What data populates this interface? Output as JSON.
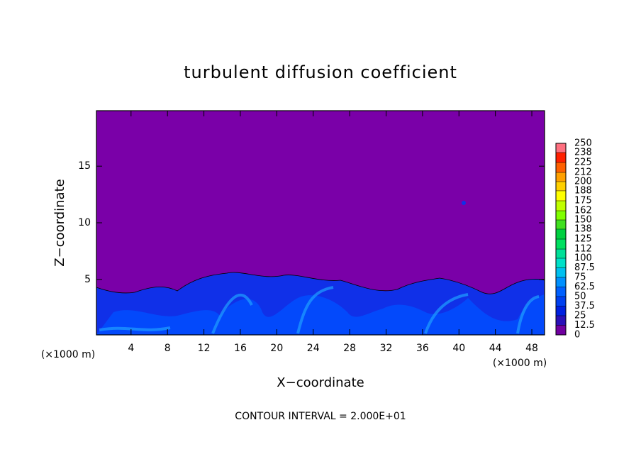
{
  "chart_data": {
    "type": "contour",
    "title": "turbulent diffusion coefficient",
    "xlabel": "X−coordinate",
    "ylabel": "Z−coordinate",
    "xunit": "(×1000 m)",
    "xunit2": "(×1000 m)",
    "footer": "CONTOUR INTERVAL = 2.000E+01",
    "xlim": [
      0.2,
      49.4
    ],
    "ylim": [
      0.1,
      19.9
    ],
    "xticks": [
      4,
      8,
      12,
      16,
      20,
      24,
      28,
      32,
      36,
      40,
      44,
      48
    ],
    "yticks": [
      5,
      10,
      15
    ],
    "background_color": "#7a00a8",
    "colorbar": {
      "ticks": [
        0,
        12.5,
        25,
        37.5,
        50,
        62.5,
        75,
        87.5,
        100,
        112,
        125,
        138,
        150,
        162,
        175,
        188,
        200,
        212,
        225,
        238,
        250
      ],
      "colors": [
        "#7000a0",
        "#2a10b8",
        "#0020e0",
        "#0040f0",
        "#0060ff",
        "#0090ff",
        "#00c0f0",
        "#00e0c8",
        "#00e098",
        "#00e060",
        "#00d040",
        "#40e020",
        "#80ff00",
        "#c0ff00",
        "#ffff00",
        "#ffd000",
        "#ffa000",
        "#ff6000",
        "#ff2000",
        "#ff7080"
      ]
    }
  }
}
